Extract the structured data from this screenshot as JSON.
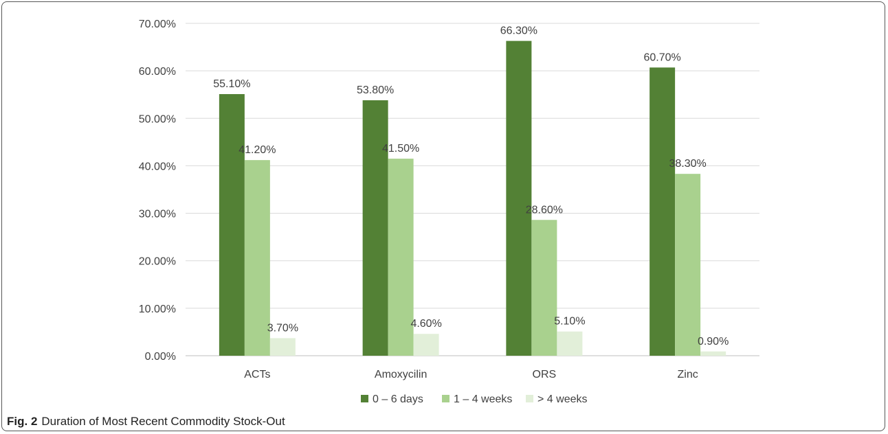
{
  "chart_data": {
    "type": "bar",
    "title": "",
    "xlabel": "",
    "ylabel": "",
    "categories": [
      "ACTs",
      "Amoxycilin",
      "ORS",
      "Zinc"
    ],
    "series": [
      {
        "name": "0 – 6 days",
        "color": "#538135",
        "values": [
          55.1,
          53.8,
          66.3,
          60.7
        ],
        "labels": [
          "55.10%",
          "53.80%",
          "66.30%",
          "60.70%"
        ]
      },
      {
        "name": "1 – 4 weeks",
        "color": "#a9d18e",
        "values": [
          41.2,
          41.5,
          28.6,
          38.3
        ],
        "labels": [
          "41.20%",
          "41.50%",
          "28.60%",
          "38.30%"
        ]
      },
      {
        "name": "> 4 weeks",
        "color": "#e2efd9",
        "values": [
          3.7,
          4.6,
          5.1,
          0.9
        ],
        "labels": [
          "3.70%",
          "4.60%",
          "5.10%",
          "0.90%"
        ]
      }
    ],
    "ylim": [
      0,
      70
    ],
    "yticks": [
      0,
      10,
      20,
      30,
      40,
      50,
      60,
      70
    ],
    "ytick_labels": [
      "0.00%",
      "10.00%",
      "20.00%",
      "30.00%",
      "40.00%",
      "50.00%",
      "60.00%",
      "70.00%"
    ],
    "grid": true,
    "legend_position": "bottom"
  },
  "caption": {
    "lead": "Fig. 2",
    "text": "Duration of Most Recent Commodity Stock-Out"
  }
}
